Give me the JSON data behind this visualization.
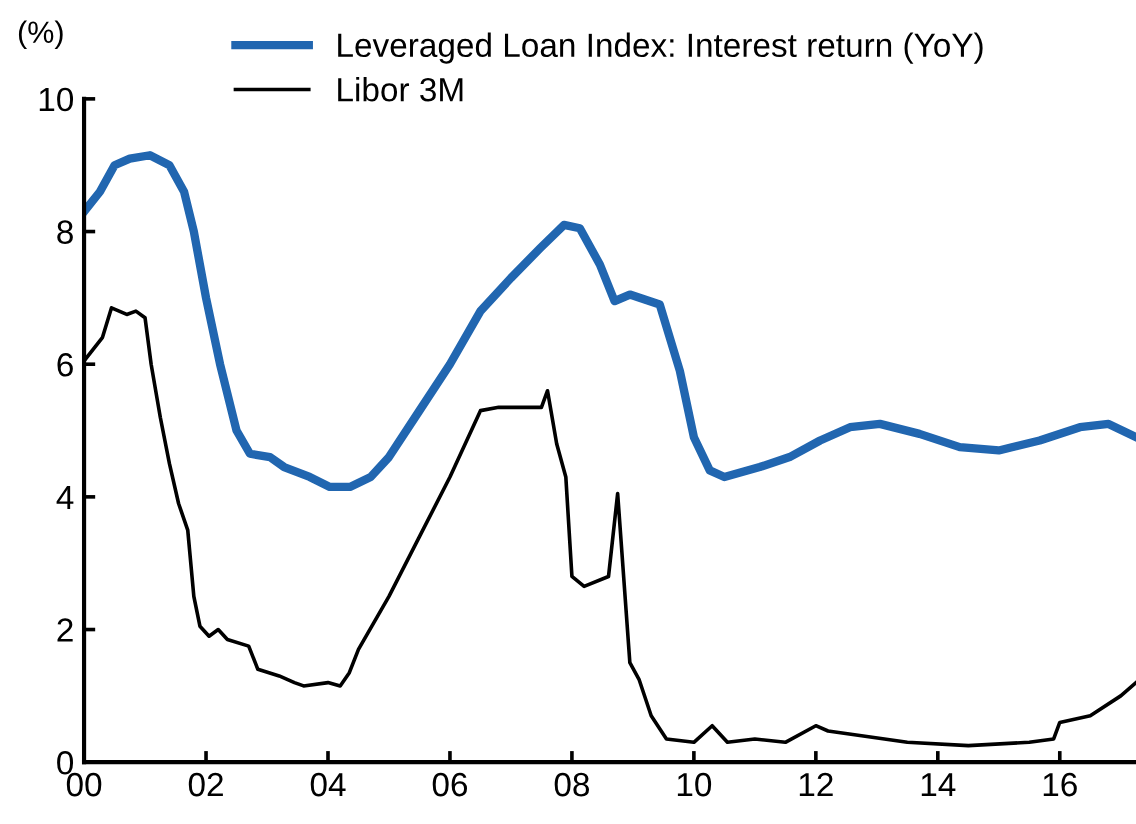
{
  "chart_data": {
    "type": "line",
    "ylabel": "(%)",
    "xlim": [
      0,
      17.25
    ],
    "ylim": [
      0,
      10
    ],
    "xticks": [
      {
        "value": 0,
        "label": "00"
      },
      {
        "value": 2,
        "label": "02"
      },
      {
        "value": 4,
        "label": "04"
      },
      {
        "value": 6,
        "label": "06"
      },
      {
        "value": 8,
        "label": "08"
      },
      {
        "value": 10,
        "label": "10"
      },
      {
        "value": 12,
        "label": "12"
      },
      {
        "value": 14,
        "label": "14"
      },
      {
        "value": 16,
        "label": "16"
      }
    ],
    "yticks": [
      0,
      2,
      4,
      6,
      8,
      10
    ],
    "grid": false,
    "legend": "top",
    "marker": "none",
    "line_style": "solid",
    "series": [
      {
        "name": "Leveraged Loan Index: Interest return (YoY)",
        "color": "#2166b0",
        "x": [
          0,
          0.26,
          0.5,
          0.75,
          1.08,
          1.4,
          1.64,
          1.8,
          2.0,
          2.23,
          2.5,
          2.72,
          3.05,
          3.28,
          3.7,
          4.03,
          4.36,
          4.7,
          5.0,
          5.5,
          6.0,
          6.5,
          7.0,
          7.48,
          7.87,
          8.13,
          8.46,
          8.7,
          8.95,
          9.44,
          9.77,
          10.0,
          10.26,
          10.5,
          11.08,
          11.57,
          12.07,
          12.56,
          13.05,
          13.7,
          14.36,
          15.0,
          15.67,
          16.33,
          16.8,
          17.25
        ],
        "values": [
          8.3,
          8.6,
          9.0,
          9.1,
          9.15,
          9.0,
          8.6,
          8.0,
          7.0,
          6.0,
          5.0,
          4.65,
          4.6,
          4.45,
          4.3,
          4.15,
          4.15,
          4.3,
          4.6,
          5.3,
          6.0,
          6.8,
          7.3,
          7.75,
          8.1,
          8.05,
          7.5,
          6.95,
          7.05,
          6.9,
          5.9,
          4.9,
          4.4,
          4.3,
          4.45,
          4.6,
          4.85,
          5.05,
          5.1,
          4.95,
          4.75,
          4.7,
          4.85,
          5.05,
          5.1,
          4.9
        ]
      },
      {
        "name": "Libor 3M",
        "color": "#000000",
        "x": [
          0,
          0.3,
          0.45,
          0.7,
          0.85,
          1.0,
          1.1,
          1.25,
          1.4,
          1.55,
          1.7,
          1.8,
          1.9,
          2.05,
          2.2,
          2.35,
          2.7,
          2.85,
          3.2,
          3.45,
          3.6,
          4.0,
          4.2,
          4.35,
          4.5,
          5.0,
          5.5,
          6.0,
          6.5,
          6.8,
          7.5,
          7.6,
          7.75,
          7.9,
          8.0,
          8.2,
          8.6,
          8.75,
          8.95,
          9.1,
          9.3,
          9.55,
          10.0,
          10.3,
          10.55,
          11.0,
          11.5,
          12.0,
          12.2,
          12.75,
          13.5,
          14.5,
          15.5,
          15.9,
          16.0,
          16.5,
          17.0,
          17.25
        ],
        "values": [
          6.05,
          6.4,
          6.85,
          6.75,
          6.8,
          6.7,
          6.0,
          5.2,
          4.5,
          3.9,
          3.5,
          2.5,
          2.05,
          1.9,
          2.0,
          1.85,
          1.75,
          1.4,
          1.3,
          1.2,
          1.15,
          1.2,
          1.15,
          1.35,
          1.7,
          2.5,
          3.4,
          4.3,
          5.3,
          5.35,
          5.35,
          5.6,
          4.8,
          4.3,
          2.8,
          2.65,
          2.8,
          4.05,
          1.5,
          1.25,
          0.7,
          0.35,
          0.3,
          0.55,
          0.3,
          0.35,
          0.3,
          0.55,
          0.47,
          0.4,
          0.3,
          0.25,
          0.3,
          0.35,
          0.6,
          0.7,
          1.0,
          1.2
        ]
      }
    ]
  }
}
